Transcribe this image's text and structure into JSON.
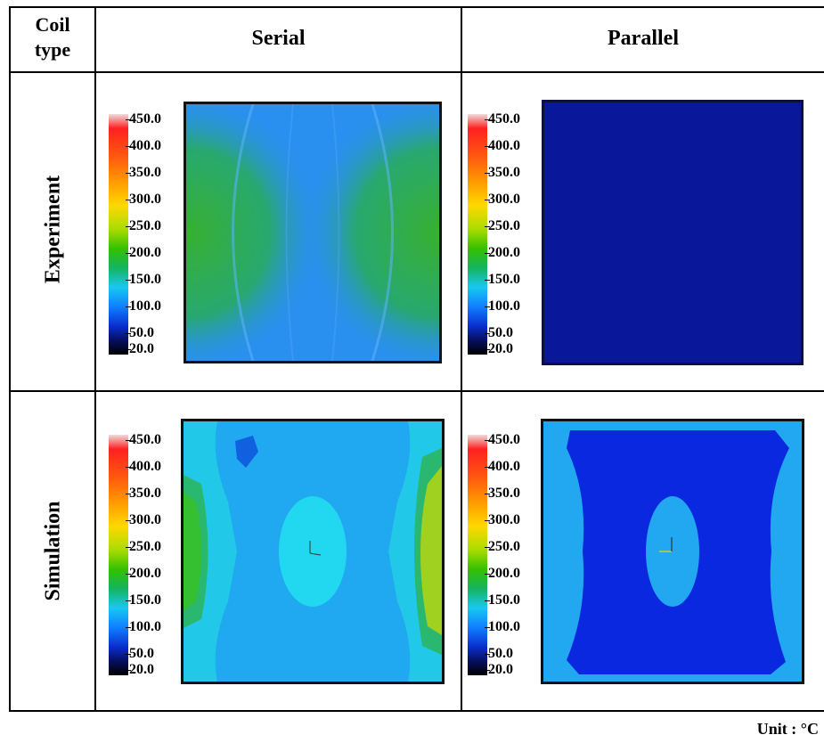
{
  "header": {
    "corner_label_line1": "Coil",
    "corner_label_line2": "type",
    "col_serial": "Serial",
    "col_parallel": "Parallel"
  },
  "rows": {
    "experiment": "Experiment",
    "simulation": "Simulation"
  },
  "colorbar": {
    "ticks": [
      "450.0",
      "400.0",
      "350.0",
      "300.0",
      "250.0",
      "200.0",
      "150.0",
      "100.0",
      "50.0",
      "20.0"
    ]
  },
  "footer": {
    "unit": "Unit : °C"
  },
  "colors": {
    "exp_serial_base": "#2a8ef0",
    "exp_serial_edge": "#2fb040",
    "exp_parallel_base": "#0a1aa0",
    "sim_serial_base": "#22a8f0",
    "sim_serial_edge": "#22c8e8",
    "sim_serial_hot": "#34c030",
    "sim_parallel_base": "#0a28e0",
    "sim_parallel_edge": "#22a8f0"
  }
}
